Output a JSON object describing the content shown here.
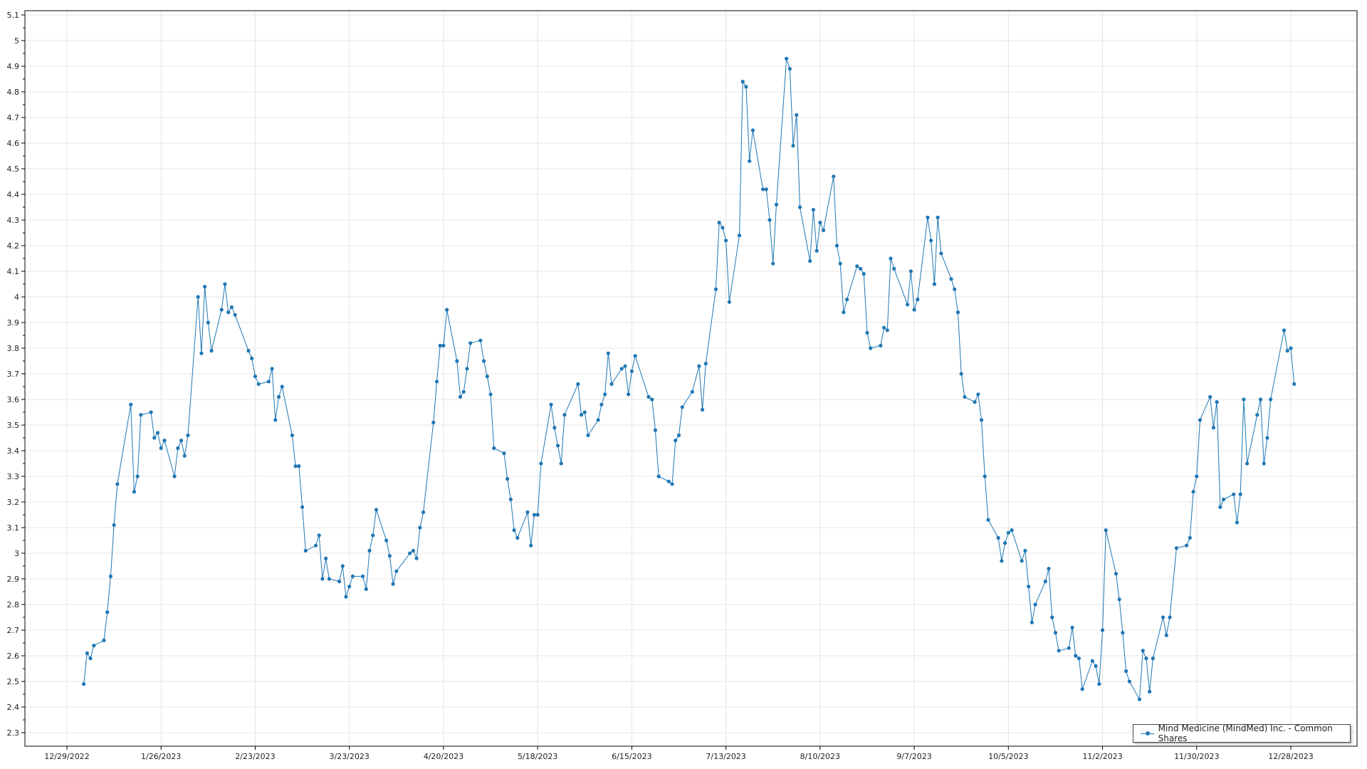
{
  "chart_data": {
    "type": "line",
    "title": "",
    "xlabel": "",
    "ylabel": "",
    "ylim": [
      2.3,
      5.1
    ],
    "yticks": [
      "2.3",
      "2.4",
      "2.5",
      "2.6",
      "2.7",
      "2.8",
      "2.9",
      "3",
      "3.1",
      "3.2",
      "3.3",
      "3.4",
      "3.5",
      "3.6",
      "3.7",
      "3.8",
      "3.9",
      "4",
      "4.1",
      "4.2",
      "4.3",
      "4.4",
      "4.5",
      "4.6",
      "4.7",
      "4.8",
      "4.9",
      "5",
      "5.1"
    ],
    "xticks": [
      "12/29/2022",
      "1/26/2023",
      "2/23/2023",
      "3/23/2023",
      "4/20/2023",
      "5/18/2023",
      "6/15/2023",
      "7/13/2023",
      "8/10/2023",
      "9/7/2023",
      "10/5/2023",
      "11/2/2023",
      "11/30/2023",
      "12/28/2023"
    ],
    "grid": true,
    "legend_position": "bottom-right",
    "color": "#1f77b4",
    "series": [
      {
        "name": "Mind Medicine (MindMed) Inc. - Common Shares",
        "points": [
          [
            "2023-01-03",
            2.49
          ],
          [
            "2023-01-04",
            2.61
          ],
          [
            "2023-01-05",
            2.59
          ],
          [
            "2023-01-06",
            2.64
          ],
          [
            "2023-01-09",
            2.66
          ],
          [
            "2023-01-10",
            2.77
          ],
          [
            "2023-01-11",
            2.91
          ],
          [
            "2023-01-12",
            3.11
          ],
          [
            "2023-01-13",
            3.27
          ],
          [
            "2023-01-17",
            3.58
          ],
          [
            "2023-01-18",
            3.24
          ],
          [
            "2023-01-19",
            3.3
          ],
          [
            "2023-01-20",
            3.54
          ],
          [
            "2023-01-23",
            3.55
          ],
          [
            "2023-01-24",
            3.45
          ],
          [
            "2023-01-25",
            3.47
          ],
          [
            "2023-01-26",
            3.41
          ],
          [
            "2023-01-27",
            3.44
          ],
          [
            "2023-01-30",
            3.3
          ],
          [
            "2023-01-31",
            3.41
          ],
          [
            "2023-02-01",
            3.44
          ],
          [
            "2023-02-02",
            3.38
          ],
          [
            "2023-02-03",
            3.46
          ],
          [
            "2023-02-06",
            4.0
          ],
          [
            "2023-02-07",
            3.78
          ],
          [
            "2023-02-08",
            4.04
          ],
          [
            "2023-02-09",
            3.9
          ],
          [
            "2023-02-10",
            3.79
          ],
          [
            "2023-02-13",
            3.95
          ],
          [
            "2023-02-14",
            4.05
          ],
          [
            "2023-02-15",
            3.94
          ],
          [
            "2023-02-16",
            3.96
          ],
          [
            "2023-02-17",
            3.93
          ],
          [
            "2023-02-21",
            3.79
          ],
          [
            "2023-02-22",
            3.76
          ],
          [
            "2023-02-23",
            3.69
          ],
          [
            "2023-02-24",
            3.66
          ],
          [
            "2023-02-27",
            3.67
          ],
          [
            "2023-02-28",
            3.72
          ],
          [
            "2023-03-01",
            3.52
          ],
          [
            "2023-03-02",
            3.61
          ],
          [
            "2023-03-03",
            3.65
          ],
          [
            "2023-03-06",
            3.46
          ],
          [
            "2023-03-07",
            3.34
          ],
          [
            "2023-03-08",
            3.34
          ],
          [
            "2023-03-09",
            3.18
          ],
          [
            "2023-03-10",
            3.01
          ],
          [
            "2023-03-13",
            3.03
          ],
          [
            "2023-03-14",
            3.07
          ],
          [
            "2023-03-15",
            2.9
          ],
          [
            "2023-03-16",
            2.98
          ],
          [
            "2023-03-17",
            2.9
          ],
          [
            "2023-03-20",
            2.89
          ],
          [
            "2023-03-21",
            2.95
          ],
          [
            "2023-03-22",
            2.83
          ],
          [
            "2023-03-23",
            2.87
          ],
          [
            "2023-03-24",
            2.91
          ],
          [
            "2023-03-27",
            2.91
          ],
          [
            "2023-03-28",
            2.86
          ],
          [
            "2023-03-29",
            3.01
          ],
          [
            "2023-03-30",
            3.07
          ],
          [
            "2023-03-31",
            3.17
          ],
          [
            "2023-04-03",
            3.05
          ],
          [
            "2023-04-04",
            2.99
          ],
          [
            "2023-04-05",
            2.88
          ],
          [
            "2023-04-06",
            2.93
          ],
          [
            "2023-04-10",
            3.0
          ],
          [
            "2023-04-11",
            3.01
          ],
          [
            "2023-04-12",
            2.98
          ],
          [
            "2023-04-13",
            3.1
          ],
          [
            "2023-04-14",
            3.16
          ],
          [
            "2023-04-17",
            3.51
          ],
          [
            "2023-04-18",
            3.67
          ],
          [
            "2023-04-19",
            3.81
          ],
          [
            "2023-04-20",
            3.81
          ],
          [
            "2023-04-21",
            3.95
          ],
          [
            "2023-04-24",
            3.75
          ],
          [
            "2023-04-25",
            3.61
          ],
          [
            "2023-04-26",
            3.63
          ],
          [
            "2023-04-27",
            3.72
          ],
          [
            "2023-04-28",
            3.82
          ],
          [
            "2023-05-01",
            3.83
          ],
          [
            "2023-05-02",
            3.75
          ],
          [
            "2023-05-03",
            3.69
          ],
          [
            "2023-05-04",
            3.62
          ],
          [
            "2023-05-05",
            3.41
          ],
          [
            "2023-05-08",
            3.39
          ],
          [
            "2023-05-09",
            3.29
          ],
          [
            "2023-05-10",
            3.21
          ],
          [
            "2023-05-11",
            3.09
          ],
          [
            "2023-05-12",
            3.06
          ],
          [
            "2023-05-15",
            3.16
          ],
          [
            "2023-05-16",
            3.03
          ],
          [
            "2023-05-17",
            3.15
          ],
          [
            "2023-05-18",
            3.15
          ],
          [
            "2023-05-19",
            3.35
          ],
          [
            "2023-05-22",
            3.58
          ],
          [
            "2023-05-23",
            3.49
          ],
          [
            "2023-05-24",
            3.42
          ],
          [
            "2023-05-25",
            3.35
          ],
          [
            "2023-05-26",
            3.54
          ],
          [
            "2023-05-30",
            3.66
          ],
          [
            "2023-05-31",
            3.54
          ],
          [
            "2023-06-01",
            3.55
          ],
          [
            "2023-06-02",
            3.46
          ],
          [
            "2023-06-05",
            3.52
          ],
          [
            "2023-06-06",
            3.58
          ],
          [
            "2023-06-07",
            3.62
          ],
          [
            "2023-06-08",
            3.78
          ],
          [
            "2023-06-09",
            3.66
          ],
          [
            "2023-06-12",
            3.72
          ],
          [
            "2023-06-13",
            3.73
          ],
          [
            "2023-06-14",
            3.62
          ],
          [
            "2023-06-15",
            3.71
          ],
          [
            "2023-06-16",
            3.77
          ],
          [
            "2023-06-20",
            3.61
          ],
          [
            "2023-06-21",
            3.6
          ],
          [
            "2023-06-22",
            3.48
          ],
          [
            "2023-06-23",
            3.3
          ],
          [
            "2023-06-26",
            3.28
          ],
          [
            "2023-06-27",
            3.27
          ],
          [
            "2023-06-28",
            3.44
          ],
          [
            "2023-06-29",
            3.46
          ],
          [
            "2023-06-30",
            3.57
          ],
          [
            "2023-07-03",
            3.63
          ],
          [
            "2023-07-05",
            3.73
          ],
          [
            "2023-07-06",
            3.56
          ],
          [
            "2023-07-07",
            3.74
          ],
          [
            "2023-07-10",
            4.03
          ],
          [
            "2023-07-11",
            4.29
          ],
          [
            "2023-07-12",
            4.27
          ],
          [
            "2023-07-13",
            4.22
          ],
          [
            "2023-07-14",
            3.98
          ],
          [
            "2023-07-17",
            4.24
          ],
          [
            "2023-07-18",
            4.84
          ],
          [
            "2023-07-19",
            4.82
          ],
          [
            "2023-07-20",
            4.53
          ],
          [
            "2023-07-21",
            4.65
          ],
          [
            "2023-07-24",
            4.42
          ],
          [
            "2023-07-25",
            4.42
          ],
          [
            "2023-07-26",
            4.3
          ],
          [
            "2023-07-27",
            4.13
          ],
          [
            "2023-07-28",
            4.36
          ],
          [
            "2023-07-31",
            4.93
          ],
          [
            "2023-08-01",
            4.89
          ],
          [
            "2023-08-02",
            4.59
          ],
          [
            "2023-08-03",
            4.71
          ],
          [
            "2023-08-04",
            4.35
          ],
          [
            "2023-08-07",
            4.14
          ],
          [
            "2023-08-08",
            4.34
          ],
          [
            "2023-08-09",
            4.18
          ],
          [
            "2023-08-10",
            4.29
          ],
          [
            "2023-08-11",
            4.26
          ],
          [
            "2023-08-14",
            4.47
          ],
          [
            "2023-08-15",
            4.2
          ],
          [
            "2023-08-16",
            4.13
          ],
          [
            "2023-08-17",
            3.94
          ],
          [
            "2023-08-18",
            3.99
          ],
          [
            "2023-08-21",
            4.12
          ],
          [
            "2023-08-22",
            4.11
          ],
          [
            "2023-08-23",
            4.09
          ],
          [
            "2023-08-24",
            3.86
          ],
          [
            "2023-08-25",
            3.8
          ],
          [
            "2023-08-28",
            3.81
          ],
          [
            "2023-08-29",
            3.88
          ],
          [
            "2023-08-30",
            3.87
          ],
          [
            "2023-08-31",
            4.15
          ],
          [
            "2023-09-01",
            4.11
          ],
          [
            "2023-09-05",
            3.97
          ],
          [
            "2023-09-06",
            4.1
          ],
          [
            "2023-09-07",
            3.95
          ],
          [
            "2023-09-08",
            3.99
          ],
          [
            "2023-09-11",
            4.31
          ],
          [
            "2023-09-12",
            4.22
          ],
          [
            "2023-09-13",
            4.05
          ],
          [
            "2023-09-14",
            4.31
          ],
          [
            "2023-09-15",
            4.17
          ],
          [
            "2023-09-18",
            4.07
          ],
          [
            "2023-09-19",
            4.03
          ],
          [
            "2023-09-20",
            3.94
          ],
          [
            "2023-09-21",
            3.7
          ],
          [
            "2023-09-22",
            3.61
          ],
          [
            "2023-09-25",
            3.59
          ],
          [
            "2023-09-26",
            3.62
          ],
          [
            "2023-09-27",
            3.52
          ],
          [
            "2023-09-28",
            3.3
          ],
          [
            "2023-09-29",
            3.13
          ],
          [
            "2023-10-02",
            3.06
          ],
          [
            "2023-10-03",
            2.97
          ],
          [
            "2023-10-04",
            3.04
          ],
          [
            "2023-10-05",
            3.08
          ],
          [
            "2023-10-06",
            3.09
          ],
          [
            "2023-10-09",
            2.97
          ],
          [
            "2023-10-10",
            3.01
          ],
          [
            "2023-10-11",
            2.87
          ],
          [
            "2023-10-12",
            2.73
          ],
          [
            "2023-10-13",
            2.8
          ],
          [
            "2023-10-16",
            2.89
          ],
          [
            "2023-10-17",
            2.94
          ],
          [
            "2023-10-18",
            2.75
          ],
          [
            "2023-10-19",
            2.69
          ],
          [
            "2023-10-20",
            2.62
          ],
          [
            "2023-10-23",
            2.63
          ],
          [
            "2023-10-24",
            2.71
          ],
          [
            "2023-10-25",
            2.6
          ],
          [
            "2023-10-26",
            2.59
          ],
          [
            "2023-10-27",
            2.47
          ],
          [
            "2023-10-30",
            2.58
          ],
          [
            "2023-10-31",
            2.56
          ],
          [
            "2023-11-01",
            2.49
          ],
          [
            "2023-11-02",
            2.7
          ],
          [
            "2023-11-03",
            3.09
          ],
          [
            "2023-11-06",
            2.92
          ],
          [
            "2023-11-07",
            2.82
          ],
          [
            "2023-11-08",
            2.69
          ],
          [
            "2023-11-09",
            2.54
          ],
          [
            "2023-11-10",
            2.5
          ],
          [
            "2023-11-13",
            2.43
          ],
          [
            "2023-11-14",
            2.62
          ],
          [
            "2023-11-15",
            2.59
          ],
          [
            "2023-11-16",
            2.46
          ],
          [
            "2023-11-17",
            2.59
          ],
          [
            "2023-11-20",
            2.75
          ],
          [
            "2023-11-21",
            2.68
          ],
          [
            "2023-11-22",
            2.75
          ],
          [
            "2023-11-24",
            3.02
          ],
          [
            "2023-11-27",
            3.03
          ],
          [
            "2023-11-28",
            3.06
          ],
          [
            "2023-11-29",
            3.24
          ],
          [
            "2023-11-30",
            3.3
          ],
          [
            "2023-12-01",
            3.52
          ],
          [
            "2023-12-04",
            3.61
          ],
          [
            "2023-12-05",
            3.49
          ],
          [
            "2023-12-06",
            3.59
          ],
          [
            "2023-12-07",
            3.18
          ],
          [
            "2023-12-08",
            3.21
          ],
          [
            "2023-12-11",
            3.23
          ],
          [
            "2023-12-12",
            3.12
          ],
          [
            "2023-12-13",
            3.23
          ],
          [
            "2023-12-14",
            3.6
          ],
          [
            "2023-12-15",
            3.35
          ],
          [
            "2023-12-18",
            3.54
          ],
          [
            "2023-12-19",
            3.6
          ],
          [
            "2023-12-20",
            3.35
          ],
          [
            "2023-12-21",
            3.45
          ],
          [
            "2023-12-22",
            3.6
          ],
          [
            "2023-12-26",
            3.87
          ],
          [
            "2023-12-27",
            3.79
          ],
          [
            "2023-12-28",
            3.8
          ],
          [
            "2023-12-29",
            3.66
          ]
        ]
      }
    ]
  }
}
